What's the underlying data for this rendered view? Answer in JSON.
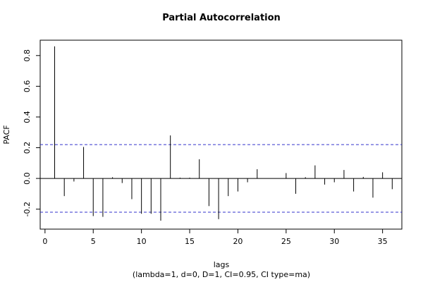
{
  "chart_data": {
    "type": "bar",
    "title": "Partial Autocorrelation",
    "xlabel": "lags",
    "subtitle": "(lambda=1, d=0, D=1, CI=0.95, CI type=ma)",
    "ylabel": "PACF",
    "xlim": [
      -0.5,
      37
    ],
    "ylim": [
      -0.33,
      0.9
    ],
    "xticks": [
      0,
      5,
      10,
      15,
      20,
      25,
      30,
      35
    ],
    "yticks": [
      -0.2,
      0.0,
      0.2,
      0.4,
      0.6,
      0.8
    ],
    "ci_upper": 0.22,
    "ci_lower": -0.22,
    "grid": false,
    "colors": {
      "bars": "#000000",
      "ci": "#3333cc",
      "zero": "#000000",
      "frame": "#000000"
    },
    "x": [
      1,
      2,
      3,
      4,
      5,
      6,
      7,
      8,
      9,
      10,
      11,
      12,
      13,
      14,
      15,
      16,
      17,
      18,
      19,
      20,
      21,
      22,
      23,
      24,
      25,
      26,
      27,
      28,
      29,
      30,
      31,
      32,
      33,
      34,
      35,
      36
    ],
    "values": [
      0.86,
      -0.115,
      -0.02,
      0.205,
      -0.245,
      -0.25,
      0.008,
      -0.03,
      -0.135,
      -0.23,
      -0.23,
      -0.275,
      0.28,
      0.005,
      0.005,
      0.125,
      -0.18,
      -0.265,
      -0.115,
      -0.085,
      -0.025,
      0.06,
      0.0,
      0.0,
      0.035,
      -0.1,
      0.008,
      0.085,
      -0.04,
      -0.025,
      0.055,
      -0.085,
      0.01,
      -0.125,
      0.04,
      -0.07
    ]
  }
}
